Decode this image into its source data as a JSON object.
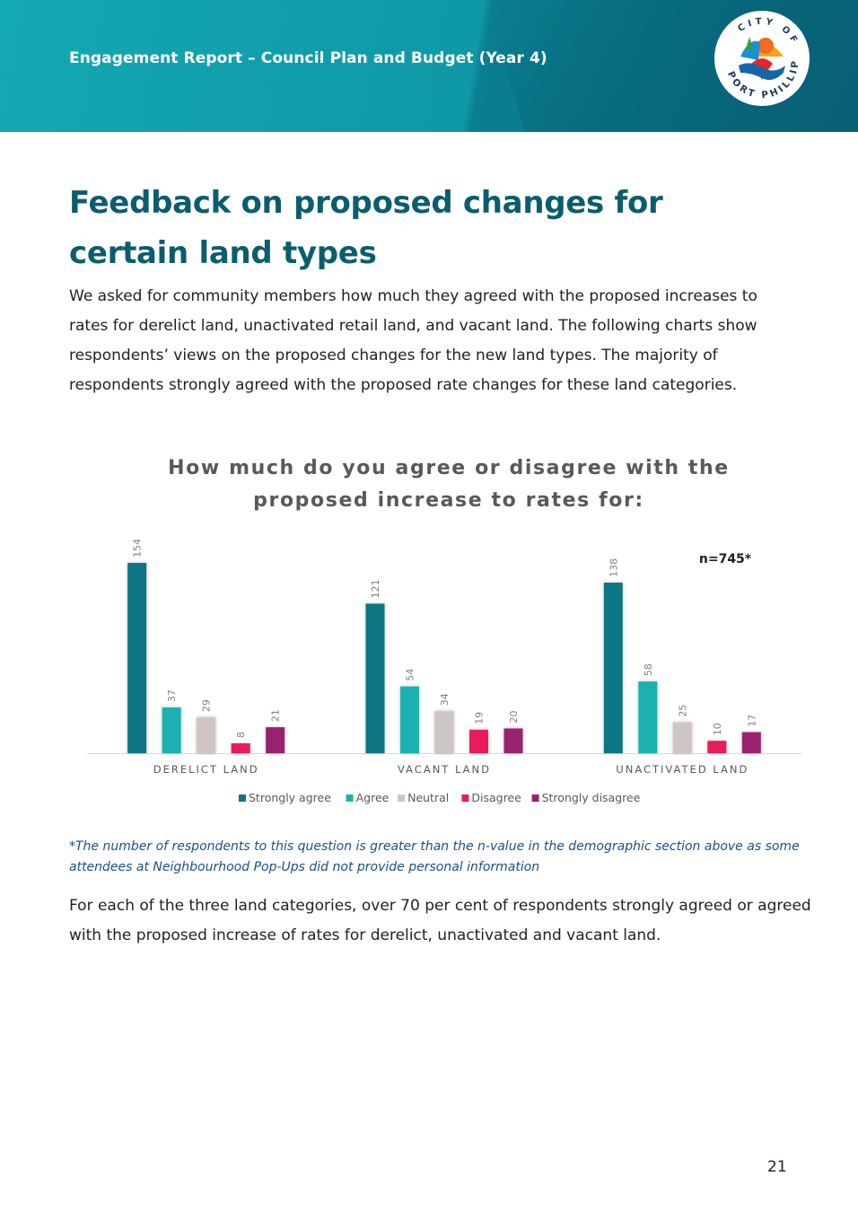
{
  "header": {
    "title": "Engagement Report – Council Plan and Budget (Year 4)",
    "logo_text": "CITY OF PORT PHILLIP"
  },
  "page": {
    "title_line1": "Feedback on proposed changes for",
    "title_line2": "certain land types",
    "intro": "We asked for community members how much they agreed with the proposed increases to rates for derelict land, unactivated retail land, and vacant land. The following charts show respondents’ views on the proposed changes for the new land types. The majority of respondents strongly agreed with the proposed rate changes for these land categories.",
    "footnote": "*The number of respondents to this question is greater than the n-value in the demographic section above as some attendees at Neighbourhood Pop-Ups did not provide personal information",
    "conclusion": "For each of the three land categories, over 70 per cent of respondents strongly agreed or agreed with the proposed increase of rates for derelict, unactivated and vacant land.",
    "page_number": "21"
  },
  "chart_data": {
    "type": "bar",
    "title_line1": "How much do you agree or disagree with the",
    "title_line2": "proposed increase to rates for:",
    "annotation": "n=745*",
    "categories": [
      "DERELICT LAND",
      "VACANT LAND",
      "UNACTIVATED LAND"
    ],
    "series": [
      {
        "name": "Strongly agree",
        "color": "#0e7585",
        "values": [
          154,
          121,
          138
        ]
      },
      {
        "name": "Agree",
        "color": "#1fb0b0",
        "values": [
          37,
          54,
          58
        ]
      },
      {
        "name": "Neutral",
        "color": "#cfc6c4",
        "values": [
          29,
          34,
          25
        ]
      },
      {
        "name": "Disagree",
        "color": "#e81e5a",
        "values": [
          8,
          19,
          10
        ]
      },
      {
        "name": "Strongly disagree",
        "color": "#98226f",
        "values": [
          21,
          20,
          17
        ]
      }
    ],
    "ylim": [
      0,
      160
    ],
    "grid": false,
    "data_labels": true,
    "legend_position": "bottom"
  }
}
